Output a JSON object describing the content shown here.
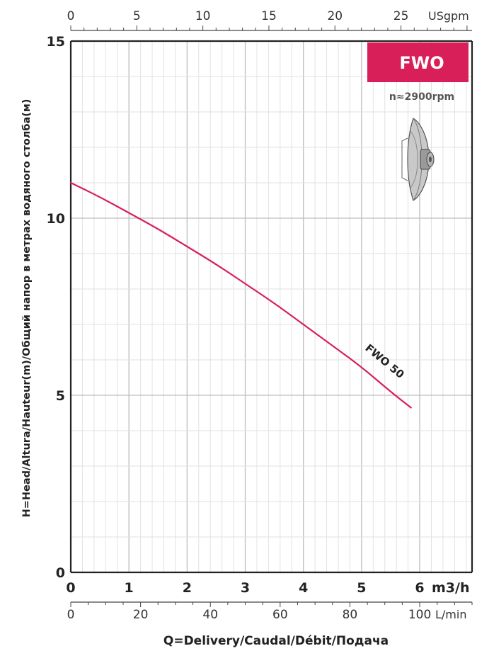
{
  "badge": {
    "model": "FWO",
    "color": "#d81f5a"
  },
  "speed": "n≈2900rpm",
  "chart_data": {
    "type": "line",
    "xlabel": "Q=Delivery/Caudal/Débit/Подача",
    "ylabel": "H=Head/Altura/Hauteur(m)/Общий напор в метрах водяного столба(м)",
    "xlim": [
      0,
      6.9
    ],
    "ylim": [
      0,
      15
    ],
    "x_unit": "m3/h",
    "x_ticks": [
      0,
      1,
      2,
      3,
      4,
      5,
      6
    ],
    "y_ticks": [
      0,
      5,
      10,
      15
    ],
    "secondary_x_top": {
      "unit": "USgpm",
      "ticks": [
        0,
        5,
        10,
        15,
        20,
        25
      ]
    },
    "secondary_x_bottom": {
      "unit": "L/min",
      "ticks": [
        0,
        20,
        40,
        60,
        80,
        100
      ]
    },
    "grid": true,
    "series": [
      {
        "name": "FWO 50",
        "color": "#d81f5a",
        "x": [
          0,
          0.5,
          1,
          1.5,
          2,
          2.5,
          3,
          3.5,
          4,
          4.5,
          5,
          5.5,
          5.85
        ],
        "y": [
          11.0,
          10.6,
          10.15,
          9.7,
          9.2,
          8.7,
          8.15,
          7.6,
          7.0,
          6.4,
          5.8,
          5.1,
          4.65
        ]
      }
    ]
  }
}
